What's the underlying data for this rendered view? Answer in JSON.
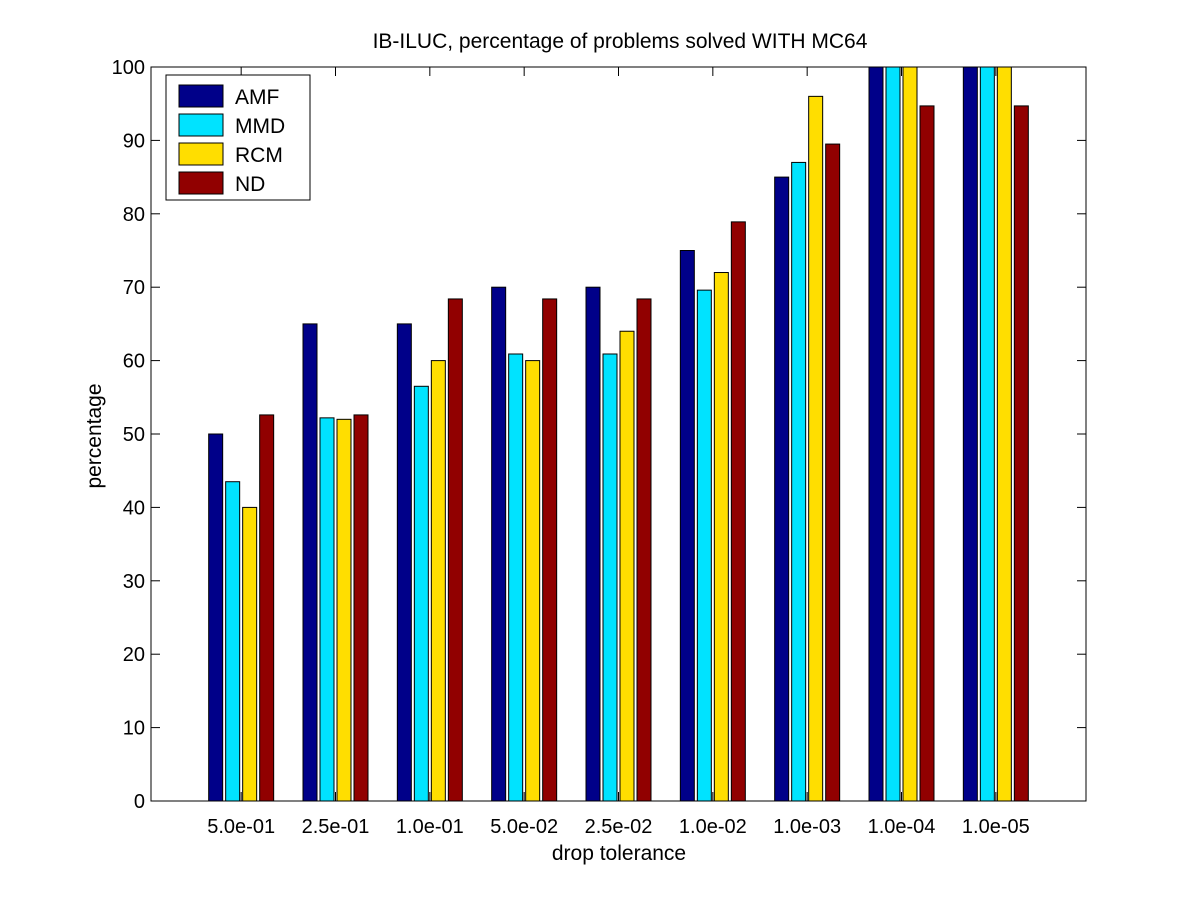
{
  "chart_data": {
    "type": "bar",
    "title": "IB-ILUC, percentage of problems solved WITH MC64",
    "xlabel": "drop tolerance",
    "ylabel": "percentage",
    "ylim": [
      0,
      100
    ],
    "yticks": [
      0,
      10,
      20,
      30,
      40,
      50,
      60,
      70,
      80,
      90,
      100
    ],
    "grid": false,
    "legend_position": "top-left",
    "categories": [
      "5.0e-01",
      "2.5e-01",
      "1.0e-01",
      "5.0e-02",
      "2.5e-02",
      "1.0e-02",
      "1.0e-03",
      "1.0e-04",
      "1.0e-05"
    ],
    "series": [
      {
        "name": "AMF",
        "color": "#000089",
        "values": [
          50,
          65,
          65,
          70,
          70,
          75,
          85,
          100,
          100
        ]
      },
      {
        "name": "MMD",
        "color": "#00e3ff",
        "values": [
          43.5,
          52.2,
          56.5,
          60.9,
          60.9,
          69.6,
          87,
          100,
          100
        ]
      },
      {
        "name": "RCM",
        "color": "#ffde00",
        "values": [
          40,
          52,
          60,
          60,
          64,
          72,
          96,
          100,
          100
        ]
      },
      {
        "name": " ND",
        "color": "#910000",
        "values": [
          52.6,
          52.6,
          68.4,
          68.4,
          68.4,
          78.9,
          89.5,
          94.7,
          94.7
        ]
      }
    ]
  }
}
